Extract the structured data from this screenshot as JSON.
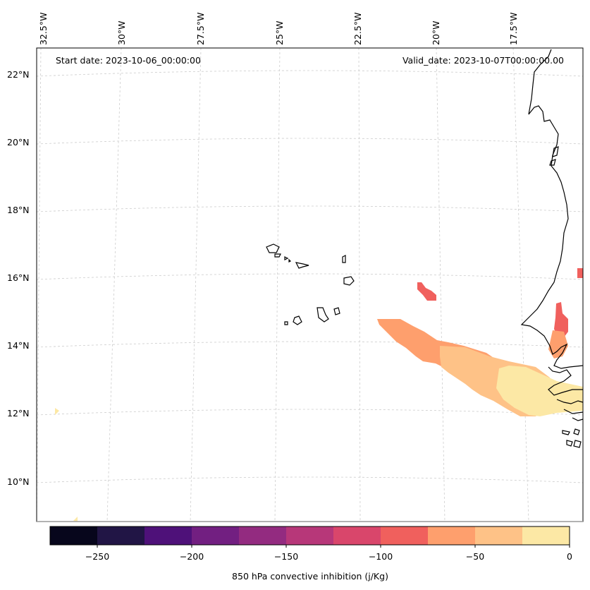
{
  "header": {
    "start_date": "Start date: 2023-10-06_00:00:00",
    "valid_date": "Valid_date: 2023-10-07T00:00:00.00"
  },
  "lon_labels": [
    "32.5°W",
    "30°W",
    "27.5°W",
    "25°W",
    "22.5°W",
    "20°W",
    "17.5°W"
  ],
  "lat_labels": [
    "22°N",
    "20°N",
    "18°N",
    "16°N",
    "14°N",
    "12°N",
    "10°N"
  ],
  "colorbar": {
    "label": "850 hPa convective inhibition (j/Kg)",
    "tick_labels": [
      "−250",
      "−200",
      "−150",
      "−100",
      "−50",
      "0"
    ],
    "range": [
      -275,
      0
    ],
    "step": 25,
    "colors": [
      "#07061c",
      "#211545",
      "#4e1179",
      "#721f81",
      "#932b80",
      "#b73779",
      "#d9466b",
      "#f0605d",
      "#fe9f6d",
      "#fec287",
      "#fce8a5"
    ]
  },
  "chart_data": {
    "type": "heatmap",
    "variable": "850 hPa convective inhibition",
    "units": "j/Kg",
    "extent_lon": [
      -33,
      -16.2
    ],
    "extent_lat": [
      8.9,
      22.8
    ],
    "regions": [
      {
        "area": "south of Cabo Verde (14.5°N–13.5°N, 23°W–20°W)",
        "value_range": [
          -75,
          -50
        ]
      },
      {
        "area": "SW of Senegal (13.5°N–12°N, 20.5°W–17°W)",
        "value_range": [
          -50,
          -25
        ]
      },
      {
        "area": "Senegal/Gambia coast (13°N–12°N, 19°W–16.5°W)",
        "value_range": [
          -25,
          0
        ]
      },
      {
        "area": "east of Cabo Verde (15.8°N, 20.5°W)",
        "value_range": [
          -100,
          -75
        ]
      },
      {
        "area": "Senegal coast (14.8°N–14°N, 17°W)",
        "value_range": [
          -100,
          -50
        ]
      }
    ]
  }
}
